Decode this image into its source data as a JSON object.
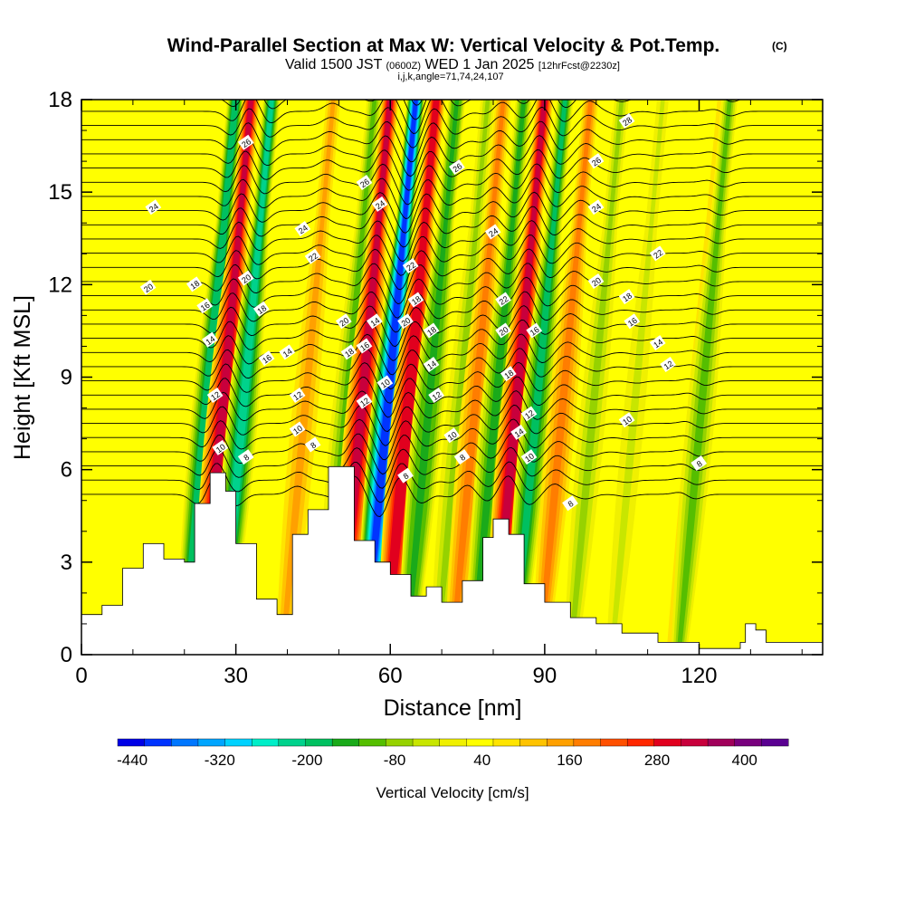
{
  "chart_data": {
    "type": "heatmap",
    "title": "Wind-Parallel Section at Max W: Vertical Velocity & Pot.Temp.",
    "title_mark": "(C)",
    "valid_prefix": "Valid 1500 JST",
    "valid_zulu": "(0600Z)",
    "valid_date": "WED 1 Jan 2025",
    "forecast_info": "[12hrFcst@2230z]",
    "grid_info": "i,j,k,angle=71,74,24,107",
    "xlabel": "Distance [nm]",
    "ylabel": "Height [Kft MSL]",
    "xlim": [
      0,
      144
    ],
    "ylim": [
      0,
      18
    ],
    "x_ticks": [
      "0",
      "30",
      "60",
      "90",
      "120"
    ],
    "y_ticks": [
      "0",
      "3",
      "6",
      "9",
      "12",
      "15",
      "18"
    ],
    "colorbar_label": "Vertical Velocity [cm/s]",
    "colorbar_ticks": [
      "-440",
      "-320",
      "-200",
      "-80",
      "40",
      "160",
      "280",
      "400"
    ],
    "colorbar_range": [
      -460,
      460
    ],
    "colorbar_colors": [
      "#0000e6",
      "#0033ff",
      "#0077ff",
      "#00a5ff",
      "#00d2ff",
      "#00eec8",
      "#00d28c",
      "#00c060",
      "#1aaa1a",
      "#55be00",
      "#96d200",
      "#c8e600",
      "#f0f000",
      "#ffff00",
      "#ffe400",
      "#ffc300",
      "#ffa000",
      "#ff7d00",
      "#ff5000",
      "#ff2800",
      "#e1001e",
      "#c8003c",
      "#a0005a",
      "#78007d",
      "#5a0091"
    ],
    "background_color": "#ffff00",
    "w_bands": [
      {
        "x": 25,
        "w": -200
      },
      {
        "x": 28,
        "w": 330
      },
      {
        "x": 32,
        "w": -210
      },
      {
        "x": 44,
        "w": 140
      },
      {
        "x": 52,
        "w": -100
      },
      {
        "x": 55,
        "w": 330
      },
      {
        "x": 60,
        "w": -400
      },
      {
        "x": 64,
        "w": 310
      },
      {
        "x": 68,
        "w": -160
      },
      {
        "x": 74,
        "w": -60
      },
      {
        "x": 77,
        "w": 170
      },
      {
        "x": 81,
        "w": -130
      },
      {
        "x": 85,
        "w": 330
      },
      {
        "x": 89,
        "w": -190
      },
      {
        "x": 94,
        "w": 180
      },
      {
        "x": 100,
        "w": -80
      },
      {
        "x": 108,
        "w": -40
      },
      {
        "x": 119,
        "w": 60
      },
      {
        "x": 121,
        "w": -100
      }
    ],
    "terrain": [
      [
        0,
        1.3
      ],
      [
        4,
        1.6
      ],
      [
        8,
        2.8
      ],
      [
        12,
        3.6
      ],
      [
        16,
        3.1
      ],
      [
        20,
        3.0
      ],
      [
        22,
        4.9
      ],
      [
        25,
        5.9
      ],
      [
        28,
        5.3
      ],
      [
        30,
        3.6
      ],
      [
        34,
        1.8
      ],
      [
        38,
        1.3
      ],
      [
        41,
        3.9
      ],
      [
        44,
        4.7
      ],
      [
        48,
        6.1
      ],
      [
        50,
        6.1
      ],
      [
        53,
        3.7
      ],
      [
        57,
        3.0
      ],
      [
        60,
        2.6
      ],
      [
        64,
        1.9
      ],
      [
        67,
        2.2
      ],
      [
        70,
        1.7
      ],
      [
        74,
        2.4
      ],
      [
        78,
        3.8
      ],
      [
        80,
        4.4
      ],
      [
        83,
        3.9
      ],
      [
        86,
        2.3
      ],
      [
        90,
        1.7
      ],
      [
        95,
        1.2
      ],
      [
        100,
        1.0
      ],
      [
        105,
        0.7
      ],
      [
        112,
        0.4
      ],
      [
        120,
        0.2
      ],
      [
        123,
        0.2
      ],
      [
        128,
        0.4
      ],
      [
        129,
        1.0
      ],
      [
        131,
        0.8
      ],
      [
        133,
        0.4
      ],
      [
        144,
        0.4
      ]
    ],
    "theta_labels": [
      {
        "text": "28",
        "x": 106,
        "y": 17.3
      },
      {
        "text": "26",
        "x": 32,
        "y": 16.6
      },
      {
        "text": "26",
        "x": 73,
        "y": 15.8
      },
      {
        "text": "26",
        "x": 100,
        "y": 16.0
      },
      {
        "text": "26",
        "x": 55,
        "y": 15.3
      },
      {
        "text": "24",
        "x": 14,
        "y": 14.5
      },
      {
        "text": "24",
        "x": 58,
        "y": 14.6
      },
      {
        "text": "24",
        "x": 43,
        "y": 13.8
      },
      {
        "text": "24",
        "x": 80,
        "y": 13.7
      },
      {
        "text": "24",
        "x": 100,
        "y": 14.5
      },
      {
        "text": "22",
        "x": 112,
        "y": 13.0
      },
      {
        "text": "22",
        "x": 45,
        "y": 12.9
      },
      {
        "text": "22",
        "x": 64,
        "y": 12.6
      },
      {
        "text": "22",
        "x": 82,
        "y": 11.5
      },
      {
        "text": "20",
        "x": 13,
        "y": 11.9
      },
      {
        "text": "20",
        "x": 32,
        "y": 12.2
      },
      {
        "text": "20",
        "x": 100,
        "y": 12.1
      },
      {
        "text": "20",
        "x": 51,
        "y": 10.8
      },
      {
        "text": "20",
        "x": 63,
        "y": 10.8
      },
      {
        "text": "20",
        "x": 82,
        "y": 10.5
      },
      {
        "text": "18",
        "x": 22,
        "y": 12.0
      },
      {
        "text": "18",
        "x": 106,
        "y": 11.6
      },
      {
        "text": "18",
        "x": 65,
        "y": 11.5
      },
      {
        "text": "18",
        "x": 52,
        "y": 9.8
      },
      {
        "text": "18",
        "x": 68,
        "y": 10.5
      },
      {
        "text": "18",
        "x": 83,
        "y": 9.1
      },
      {
        "text": "18",
        "x": 35,
        "y": 11.2
      },
      {
        "text": "16",
        "x": 24,
        "y": 11.3
      },
      {
        "text": "16",
        "x": 107,
        "y": 10.8
      },
      {
        "text": "16",
        "x": 36,
        "y": 9.6
      },
      {
        "text": "16",
        "x": 55,
        "y": 10.0
      },
      {
        "text": "16",
        "x": 88,
        "y": 10.5
      },
      {
        "text": "14",
        "x": 25,
        "y": 10.2
      },
      {
        "text": "14",
        "x": 40,
        "y": 9.8
      },
      {
        "text": "14",
        "x": 57,
        "y": 10.8
      },
      {
        "text": "14",
        "x": 68,
        "y": 9.4
      },
      {
        "text": "14",
        "x": 112,
        "y": 10.1
      },
      {
        "text": "14",
        "x": 85,
        "y": 7.2
      },
      {
        "text": "12",
        "x": 114,
        "y": 9.4
      },
      {
        "text": "12",
        "x": 26,
        "y": 8.4
      },
      {
        "text": "12",
        "x": 42,
        "y": 8.4
      },
      {
        "text": "12",
        "x": 55,
        "y": 8.2
      },
      {
        "text": "12",
        "x": 69,
        "y": 8.4
      },
      {
        "text": "12",
        "x": 87,
        "y": 7.8
      },
      {
        "text": "10",
        "x": 27,
        "y": 6.7
      },
      {
        "text": "10",
        "x": 42,
        "y": 7.3
      },
      {
        "text": "10",
        "x": 59,
        "y": 8.8
      },
      {
        "text": "10",
        "x": 72,
        "y": 7.1
      },
      {
        "text": "10",
        "x": 106,
        "y": 7.6
      },
      {
        "text": "10",
        "x": 87,
        "y": 6.4
      },
      {
        "text": "8",
        "x": 32,
        "y": 6.4
      },
      {
        "text": "8",
        "x": 45,
        "y": 6.8
      },
      {
        "text": "8",
        "x": 63,
        "y": 5.8
      },
      {
        "text": "8",
        "x": 74,
        "y": 6.4
      },
      {
        "text": "8",
        "x": 120,
        "y": 6.2
      },
      {
        "text": "8",
        "x": 95,
        "y": 4.9
      }
    ]
  }
}
